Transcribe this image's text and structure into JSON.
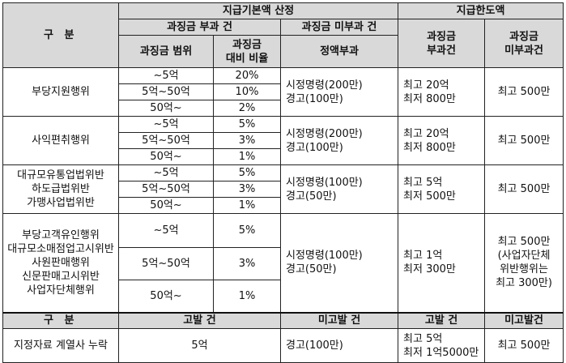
{
  "header": {
    "gubun": "구  분",
    "base_calc": "지급기본액 산정",
    "limit": "지급한도액",
    "imposed_case": "과징금 부과 건",
    "not_imposed_case": "과징금 미부과 건",
    "limit_imposed": [
      "과징금",
      "부과건"
    ],
    "limit_not_imposed": [
      "과징금",
      "미부과건"
    ],
    "range": "과징금 범위",
    "ratio": [
      "과징금",
      "대비 비율"
    ],
    "fixed": "정액부과"
  },
  "groups": [
    {
      "name": [
        "부당지원행위"
      ],
      "tiers": [
        {
          "range": "~5억",
          "ratio": "20%"
        },
        {
          "range": "5억~50억",
          "ratio": "10%"
        },
        {
          "range": "50억~",
          "ratio": "2%"
        }
      ],
      "fixed": [
        "시정명령(200만)",
        "경고(100만)"
      ],
      "limit_imposed": [
        "최고 20억",
        "최저 800만"
      ],
      "limit_not_imposed": [
        "최고 500만"
      ]
    },
    {
      "name": [
        "사익편취행위"
      ],
      "tiers": [
        {
          "range": "~5억",
          "ratio": "5%"
        },
        {
          "range": "5억~50억",
          "ratio": "3%"
        },
        {
          "range": "50억~",
          "ratio": "1%"
        }
      ],
      "fixed": [
        "시정명령(200만)",
        "경고(100만)"
      ],
      "limit_imposed": [
        "최고 20억",
        "최저 800만"
      ],
      "limit_not_imposed": [
        "최고 500만"
      ]
    },
    {
      "name": [
        "대규모유통업법위반",
        "하도급법위반",
        "가맹사업법위반"
      ],
      "tiers": [
        {
          "range": "~5억",
          "ratio": "5%"
        },
        {
          "range": "5억~50억",
          "ratio": "3%"
        },
        {
          "range": "50억~",
          "ratio": "1%"
        }
      ],
      "fixed": [
        "시정명령(100만)",
        "경고(50만)"
      ],
      "limit_imposed": [
        "최고 5억",
        "최저 500만"
      ],
      "limit_not_imposed": [
        "최고 500만"
      ]
    },
    {
      "name": [
        "부당고객유인행위",
        "대규모소매점업고시위반",
        "사원판매행위",
        "신문판매고시위반",
        "사업자단체행위"
      ],
      "tiers": [
        {
          "range": "~5억",
          "ratio": "5%"
        },
        {
          "range": "5억~50억",
          "ratio": "3%"
        },
        {
          "range": "50억~",
          "ratio": "1%"
        }
      ],
      "fixed": [
        "시정명령(100만)",
        "경고(50만)"
      ],
      "limit_imposed": [
        "최고 1억",
        "최저 300만"
      ],
      "limit_not_imposed": [
        "최고 500만",
        "(사업자단체",
        "위반행위는",
        "최고 300만)"
      ]
    }
  ],
  "bottom_header": {
    "gubun": "구  분",
    "accused": "고발 건",
    "not_accused": "미고발 건",
    "limit_accused": "고발 건",
    "limit_not_accused": "미고발건"
  },
  "bottom_row": {
    "name": "지정자료 계열사 누락",
    "accused": "5억",
    "not_accused": "경고(100만)",
    "limit_accused": [
      "최고 5억",
      "최저 1억5000만"
    ],
    "limit_not_accused": "최고 500만"
  }
}
